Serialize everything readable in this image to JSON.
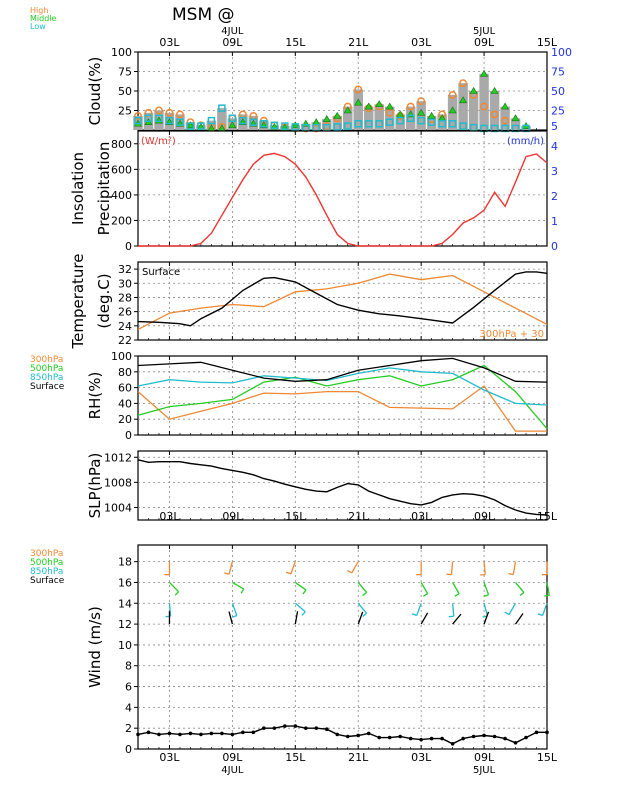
{
  "title": "MSM  @",
  "colors": {
    "high": "#ee8833",
    "middle": "#22cc22",
    "low": "#22bbcc",
    "surface": "#000000",
    "red": "#ee3333",
    "blue": "#2233dd",
    "bar": "#a9a9a9"
  },
  "time_axis": {
    "tick_labels": [
      "03L",
      "09L",
      "15L",
      "21L",
      "03L",
      "09L",
      "15L"
    ],
    "tick_hours": [
      3,
      9,
      15,
      21,
      27,
      33,
      39
    ],
    "date_labels": [
      {
        "text": "4JUL",
        "hour": 9
      },
      {
        "text": "5JUL",
        "hour": 33
      }
    ],
    "range": [
      0,
      39
    ]
  },
  "chart_data": [
    {
      "type": "bar",
      "id": "cloud",
      "ylabel": "Cloud(%)",
      "ylim": [
        0,
        100
      ],
      "yticks": [
        25,
        50,
        75,
        100
      ],
      "right_ticks": [
        5,
        25,
        50,
        75,
        100
      ],
      "legend": [
        "High",
        "Middle",
        "Low"
      ],
      "x": [
        0,
        1,
        2,
        3,
        4,
        5,
        6,
        7,
        8,
        9,
        10,
        11,
        12,
        13,
        14,
        15,
        16,
        17,
        18,
        19,
        20,
        21,
        22,
        23,
        24,
        25,
        26,
        27,
        28,
        29,
        30,
        31,
        32,
        33,
        34,
        35,
        36,
        37,
        38,
        39
      ],
      "series": [
        {
          "name": "High",
          "values": [
            18,
            22,
            25,
            22,
            20,
            10,
            6,
            4,
            4,
            15,
            20,
            18,
            12,
            6,
            3,
            2,
            2,
            2,
            5,
            15,
            30,
            52,
            28,
            30,
            22,
            18,
            30,
            37,
            14,
            20,
            45,
            60,
            45,
            30,
            20,
            12,
            0,
            0,
            0,
            0
          ]
        },
        {
          "name": "Middle",
          "values": [
            8,
            10,
            12,
            10,
            8,
            6,
            4,
            2,
            2,
            6,
            10,
            8,
            6,
            4,
            3,
            6,
            8,
            10,
            14,
            18,
            25,
            35,
            30,
            33,
            30,
            20,
            20,
            22,
            18,
            15,
            25,
            38,
            50,
            72,
            50,
            30,
            15,
            5,
            0,
            0
          ]
        },
        {
          "name": "Low",
          "values": [
            12,
            15,
            15,
            12,
            10,
            5,
            5,
            12,
            28,
            15,
            12,
            10,
            8,
            6,
            5,
            4,
            3,
            3,
            3,
            4,
            5,
            8,
            8,
            8,
            10,
            12,
            15,
            12,
            10,
            8,
            8,
            5,
            3,
            2,
            2,
            2,
            2,
            2,
            0,
            0
          ]
        },
        {
          "name": "Total",
          "values": [
            18,
            22,
            25,
            22,
            20,
            10,
            6,
            12,
            28,
            15,
            20,
            18,
            12,
            6,
            5,
            6,
            8,
            10,
            14,
            18,
            30,
            52,
            30,
            33,
            30,
            20,
            30,
            37,
            18,
            20,
            45,
            60,
            50,
            72,
            50,
            30,
            15,
            5,
            0,
            0
          ]
        }
      ]
    },
    {
      "type": "line",
      "id": "insolation",
      "ylabel": [
        "Insolation",
        "Precipitation"
      ],
      "left_unit": "(W/m²)",
      "right_unit": "(mm/h)",
      "ylim": [
        0,
        900
      ],
      "yticks": [
        0,
        200,
        400,
        600,
        800
      ],
      "right_ticks": [
        0,
        1,
        2,
        3,
        4
      ],
      "x": [
        0,
        1,
        2,
        3,
        4,
        5,
        6,
        7,
        8,
        9,
        10,
        11,
        12,
        13,
        14,
        15,
        16,
        17,
        18,
        19,
        20,
        21,
        22,
        23,
        24,
        25,
        26,
        27,
        28,
        29,
        30,
        31,
        32,
        33,
        34,
        35,
        36,
        37,
        38,
        39
      ],
      "series": [
        {
          "name": "Insolation",
          "values": [
            0,
            0,
            0,
            0,
            0,
            0,
            20,
            100,
            240,
            380,
            520,
            640,
            710,
            725,
            700,
            640,
            540,
            400,
            240,
            90,
            20,
            0,
            0,
            0,
            0,
            0,
            0,
            0,
            0,
            20,
            90,
            180,
            220,
            280,
            420,
            310,
            500,
            700,
            720,
            650
          ]
        }
      ]
    },
    {
      "type": "line",
      "id": "temperature",
      "ylabel": [
        "Temperature",
        "(deg.C)"
      ],
      "ylim": [
        22,
        33
      ],
      "yticks": [
        22,
        24,
        26,
        28,
        30,
        32
      ],
      "inline_labels": [
        "Surface",
        "300hPa + 30"
      ],
      "series": [
        {
          "name": "Surface",
          "x": [
            0,
            2,
            4,
            5,
            6,
            8,
            10,
            12,
            13,
            15,
            17,
            19,
            21,
            23,
            25,
            27,
            28,
            30,
            32,
            34,
            36,
            37,
            38,
            39
          ],
          "values": [
            24.6,
            24.5,
            24.3,
            24.0,
            25.0,
            26.5,
            29.0,
            30.7,
            30.8,
            30.2,
            28.6,
            27.0,
            26.2,
            25.7,
            25.4,
            25.0,
            24.8,
            24.4,
            26.6,
            29.0,
            31.3,
            31.6,
            31.6,
            31.4
          ]
        },
        {
          "name": "300hPa + 30",
          "x": [
            0,
            3,
            6,
            9,
            12,
            15,
            18,
            21,
            24,
            27,
            30,
            33,
            36,
            39
          ],
          "values": [
            23.5,
            25.8,
            26.5,
            27.0,
            26.7,
            28.8,
            29.2,
            30.0,
            31.3,
            30.5,
            31.1,
            28.8,
            26.5,
            24.2
          ]
        }
      ]
    },
    {
      "type": "line",
      "id": "rh",
      "ylabel": "RH(%)",
      "ylim": [
        0,
        100
      ],
      "yticks": [
        0,
        20,
        40,
        60,
        80,
        100
      ],
      "legend": [
        "300hPa",
        "500hPa",
        "850hPa",
        "Surface"
      ],
      "series": [
        {
          "name": "300hPa",
          "x": [
            0,
            3,
            6,
            9,
            12,
            15,
            18,
            21,
            24,
            27,
            30,
            33,
            36,
            39
          ],
          "values": [
            55,
            20,
            30,
            40,
            53,
            52,
            55,
            55,
            35,
            34,
            33,
            62,
            5,
            5
          ]
        },
        {
          "name": "500hPa",
          "x": [
            0,
            3,
            6,
            9,
            12,
            15,
            18,
            21,
            24,
            27,
            30,
            33,
            36,
            39
          ],
          "values": [
            25,
            36,
            40,
            45,
            67,
            73,
            62,
            70,
            75,
            62,
            70,
            88,
            55,
            8
          ]
        },
        {
          "name": "850hPa",
          "x": [
            0,
            3,
            6,
            9,
            12,
            15,
            18,
            21,
            24,
            27,
            30,
            33,
            36,
            39
          ],
          "values": [
            62,
            70,
            67,
            66,
            75,
            72,
            69,
            78,
            85,
            80,
            78,
            57,
            40,
            38
          ]
        },
        {
          "name": "Surface",
          "x": [
            0,
            3,
            6,
            9,
            12,
            15,
            18,
            21,
            24,
            27,
            30,
            33,
            36,
            39
          ],
          "values": [
            88,
            90,
            92,
            82,
            72,
            68,
            70,
            82,
            88,
            94,
            97,
            85,
            68,
            67
          ]
        }
      ]
    },
    {
      "type": "line",
      "id": "slp",
      "ylabel": "SLP(hPa)",
      "ylim": [
        1002,
        1013
      ],
      "yticks": [
        1004,
        1008,
        1012
      ],
      "series": [
        {
          "name": "SLP",
          "x": [
            0,
            1,
            2,
            3,
            4,
            5,
            6,
            7,
            8,
            9,
            10,
            11,
            12,
            13,
            14,
            15,
            16,
            17,
            18,
            19,
            20,
            21,
            22,
            23,
            24,
            25,
            26,
            27,
            28,
            29,
            30,
            31,
            32,
            33,
            34,
            35,
            36,
            37,
            38,
            39
          ],
          "values": [
            1011.6,
            1011.2,
            1011.3,
            1011.3,
            1011.3,
            1011.0,
            1010.8,
            1010.6,
            1010.2,
            1009.9,
            1009.6,
            1009.2,
            1008.6,
            1008.2,
            1007.7,
            1007.3,
            1006.9,
            1006.6,
            1006.5,
            1007.2,
            1007.8,
            1007.6,
            1006.6,
            1006.0,
            1005.4,
            1005.0,
            1004.6,
            1004.4,
            1004.8,
            1005.6,
            1006.0,
            1006.2,
            1006.1,
            1005.8,
            1005.2,
            1004.3,
            1003.6,
            1003.1,
            1002.9,
            1002.8
          ]
        }
      ]
    },
    {
      "type": "line",
      "id": "wind",
      "ylabel": "Wind  (m/s)",
      "ylim": [
        0,
        19.6
      ],
      "yticks": [
        0,
        2,
        4,
        6,
        8,
        10,
        12,
        14,
        16,
        18
      ],
      "legend": [
        "300hPa",
        "500hPa",
        "850hPa",
        "Surface"
      ],
      "series": [
        {
          "name": "Surface",
          "x": [
            0,
            1,
            2,
            3,
            4,
            5,
            6,
            7,
            8,
            9,
            10,
            11,
            12,
            13,
            14,
            15,
            16,
            17,
            18,
            19,
            20,
            21,
            22,
            23,
            24,
            25,
            26,
            27,
            28,
            29,
            30,
            31,
            32,
            33,
            34,
            35,
            36,
            37,
            38,
            39
          ],
          "values": [
            1.4,
            1.6,
            1.4,
            1.5,
            1.4,
            1.5,
            1.4,
            1.5,
            1.5,
            1.4,
            1.6,
            1.6,
            2.0,
            2.0,
            2.2,
            2.2,
            2.0,
            2.0,
            1.9,
            1.4,
            1.2,
            1.3,
            1.5,
            1.1,
            1.1,
            1.2,
            1.0,
            0.9,
            1.0,
            1.0,
            0.5,
            1.0,
            1.2,
            1.3,
            1.2,
            1.0,
            0.6,
            1.1,
            1.6,
            1.6
          ]
        }
      ],
      "barbs": [
        {
          "level": "300hPa",
          "x": [
            3,
            9,
            15,
            21,
            27,
            30,
            33,
            36,
            39
          ],
          "angle": [
            180,
            195,
            200,
            210,
            180,
            185,
            175,
            190,
            180
          ]
        },
        {
          "level": "500hPa",
          "x": [
            3,
            9,
            15,
            21,
            27,
            30,
            33,
            36,
            39
          ],
          "angle": [
            135,
            120,
            125,
            140,
            150,
            150,
            160,
            140,
            170
          ]
        },
        {
          "level": "850hPa",
          "x": [
            3,
            9,
            15,
            21,
            27,
            30,
            33,
            36,
            39
          ],
          "angle": [
            175,
            160,
            130,
            140,
            200,
            175,
            165,
            210,
            200
          ]
        },
        {
          "level": "Surface",
          "x": [
            3,
            9,
            15,
            21,
            27,
            30,
            33,
            36
          ],
          "angle": [
            0,
            345,
            10,
            20,
            30,
            40,
            20,
            35
          ]
        }
      ]
    }
  ]
}
